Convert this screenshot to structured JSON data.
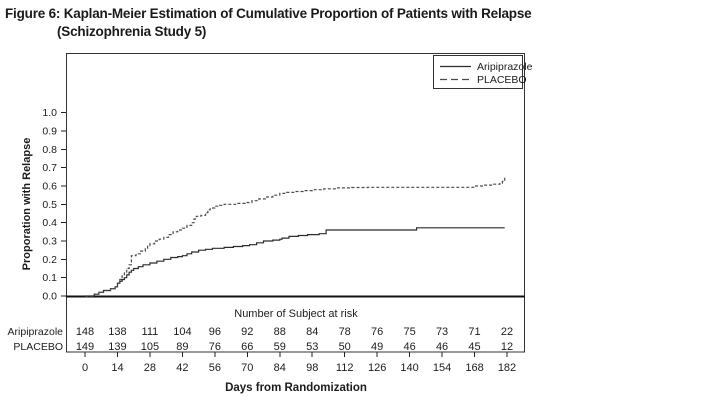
{
  "figure": {
    "title_line1": "Figure 6: Kaplan-Meier Estimation of Cumulative Proportion of Patients with Relapse",
    "title_line2": "(Schizophrenia Study 5)"
  },
  "colors": {
    "ink": "#1c1c1c",
    "axis": "#222222",
    "aripiprazole_line": "#2b2b2b",
    "placebo_line": "#4a4a4a",
    "background": "#ffffff"
  },
  "chart_data": {
    "type": "line",
    "subtype": "kaplan-meier-step",
    "title": "",
    "xlabel": "Days from Randomization",
    "ylabel": "Proporation with Relapse",
    "xlim": [
      0,
      182
    ],
    "ylim": [
      0,
      1.0
    ],
    "grid": false,
    "legend_position": "top-right",
    "xticks": [
      0,
      14,
      28,
      42,
      56,
      70,
      84,
      98,
      112,
      126,
      140,
      154,
      168,
      182
    ],
    "yticks": [
      0.0,
      0.1,
      0.2,
      0.3,
      0.4,
      0.5,
      0.6,
      0.7,
      0.8,
      0.9,
      1.0
    ],
    "series": [
      {
        "name": "Aripiprazole",
        "style": "solid",
        "points": [
          [
            0,
            0
          ],
          [
            4,
            0.01
          ],
          [
            6,
            0.02
          ],
          [
            8,
            0.03
          ],
          [
            11,
            0.04
          ],
          [
            13,
            0.05
          ],
          [
            14,
            0.07
          ],
          [
            15,
            0.08
          ],
          [
            16,
            0.09
          ],
          [
            17,
            0.1
          ],
          [
            18,
            0.115
          ],
          [
            19,
            0.13
          ],
          [
            20,
            0.14
          ],
          [
            21,
            0.15
          ],
          [
            23,
            0.16
          ],
          [
            25,
            0.17
          ],
          [
            28,
            0.18
          ],
          [
            31,
            0.19
          ],
          [
            34,
            0.2
          ],
          [
            37,
            0.21
          ],
          [
            40,
            0.215
          ],
          [
            42,
            0.22
          ],
          [
            44,
            0.23
          ],
          [
            46,
            0.24
          ],
          [
            49,
            0.25
          ],
          [
            52,
            0.255
          ],
          [
            55,
            0.26
          ],
          [
            60,
            0.265
          ],
          [
            64,
            0.27
          ],
          [
            68,
            0.275
          ],
          [
            71,
            0.28
          ],
          [
            74,
            0.29
          ],
          [
            77,
            0.3
          ],
          [
            81,
            0.305
          ],
          [
            84,
            0.31
          ],
          [
            85,
            0.316
          ],
          [
            88,
            0.325
          ],
          [
            92,
            0.33
          ],
          [
            96,
            0.335
          ],
          [
            101,
            0.34
          ],
          [
            104,
            0.36
          ],
          [
            140,
            0.36
          ],
          [
            143,
            0.372
          ],
          [
            181,
            0.372
          ]
        ]
      },
      {
        "name": "PLACEBO",
        "style": "dashed",
        "points": [
          [
            0,
            0
          ],
          [
            4,
            0.01
          ],
          [
            6,
            0.02
          ],
          [
            8,
            0.03
          ],
          [
            11,
            0.04
          ],
          [
            13,
            0.05
          ],
          [
            14,
            0.07
          ],
          [
            15,
            0.09
          ],
          [
            16,
            0.11
          ],
          [
            17,
            0.13
          ],
          [
            18,
            0.15
          ],
          [
            19,
            0.17
          ],
          [
            20,
            0.22
          ],
          [
            22,
            0.23
          ],
          [
            24,
            0.245
          ],
          [
            26,
            0.26
          ],
          [
            27,
            0.275
          ],
          [
            28,
            0.285
          ],
          [
            30,
            0.3
          ],
          [
            32,
            0.31
          ],
          [
            34,
            0.32
          ],
          [
            36,
            0.335
          ],
          [
            38,
            0.35
          ],
          [
            40,
            0.36
          ],
          [
            42,
            0.37
          ],
          [
            44,
            0.385
          ],
          [
            46,
            0.4
          ],
          [
            47,
            0.42
          ],
          [
            48,
            0.435
          ],
          [
            50,
            0.44
          ],
          [
            52,
            0.455
          ],
          [
            53,
            0.47
          ],
          [
            54,
            0.48
          ],
          [
            56,
            0.49
          ],
          [
            58,
            0.495
          ],
          [
            60,
            0.5
          ],
          [
            66,
            0.505
          ],
          [
            69,
            0.51
          ],
          [
            72,
            0.52
          ],
          [
            75,
            0.53
          ],
          [
            78,
            0.54
          ],
          [
            81,
            0.55
          ],
          [
            84,
            0.56
          ],
          [
            87,
            0.565
          ],
          [
            90,
            0.57
          ],
          [
            94,
            0.575
          ],
          [
            98,
            0.58
          ],
          [
            103,
            0.585
          ],
          [
            108,
            0.59
          ],
          [
            115,
            0.592
          ],
          [
            122,
            0.593
          ],
          [
            150,
            0.593
          ],
          [
            168,
            0.6
          ],
          [
            172,
            0.605
          ],
          [
            176,
            0.61
          ],
          [
            179,
            0.615
          ],
          [
            180,
            0.625
          ],
          [
            181,
            0.65
          ]
        ]
      }
    ],
    "at_risk_table": {
      "title": "Number of Subject at risk",
      "rows": [
        {
          "label": "Aripiprazole",
          "values": [
            148,
            138,
            111,
            104,
            96,
            92,
            88,
            84,
            78,
            76,
            75,
            73,
            71,
            22
          ]
        },
        {
          "label": "PLACEBO",
          "values": [
            149,
            139,
            105,
            89,
            76,
            66,
            59,
            53,
            50,
            49,
            46,
            46,
            45,
            12
          ]
        }
      ]
    }
  }
}
